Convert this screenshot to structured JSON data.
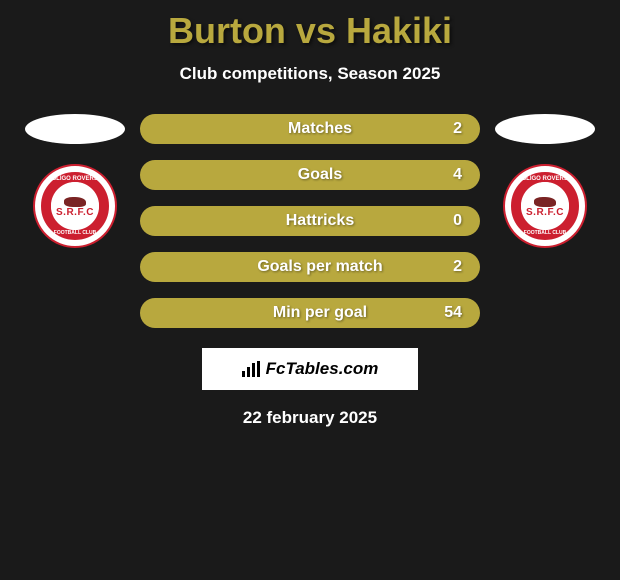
{
  "header": {
    "title": "Burton vs Hakiki",
    "title_color": "#b8a83e",
    "subtitle": "Club competitions, Season 2025"
  },
  "crest": {
    "text_top": "SLIGO ROVERS",
    "text_bottom": "FOOTBALL CLUB",
    "abbrev": "S.R.F.C",
    "primary_color": "#cc1f2f",
    "bg_color": "#ffffff"
  },
  "stats": {
    "type": "horizontal-bar-list",
    "bar_color": "#b8a83e",
    "text_color": "#ffffff",
    "items": [
      {
        "label": "Matches",
        "value": "2"
      },
      {
        "label": "Goals",
        "value": "4"
      },
      {
        "label": "Hattricks",
        "value": "0"
      },
      {
        "label": "Goals per match",
        "value": "2"
      },
      {
        "label": "Min per goal",
        "value": "54"
      }
    ]
  },
  "brand": {
    "text": "FcTables.com",
    "bg_color": "#ffffff"
  },
  "footer": {
    "date": "22 february 2025"
  },
  "background_color": "#1a1a1a"
}
